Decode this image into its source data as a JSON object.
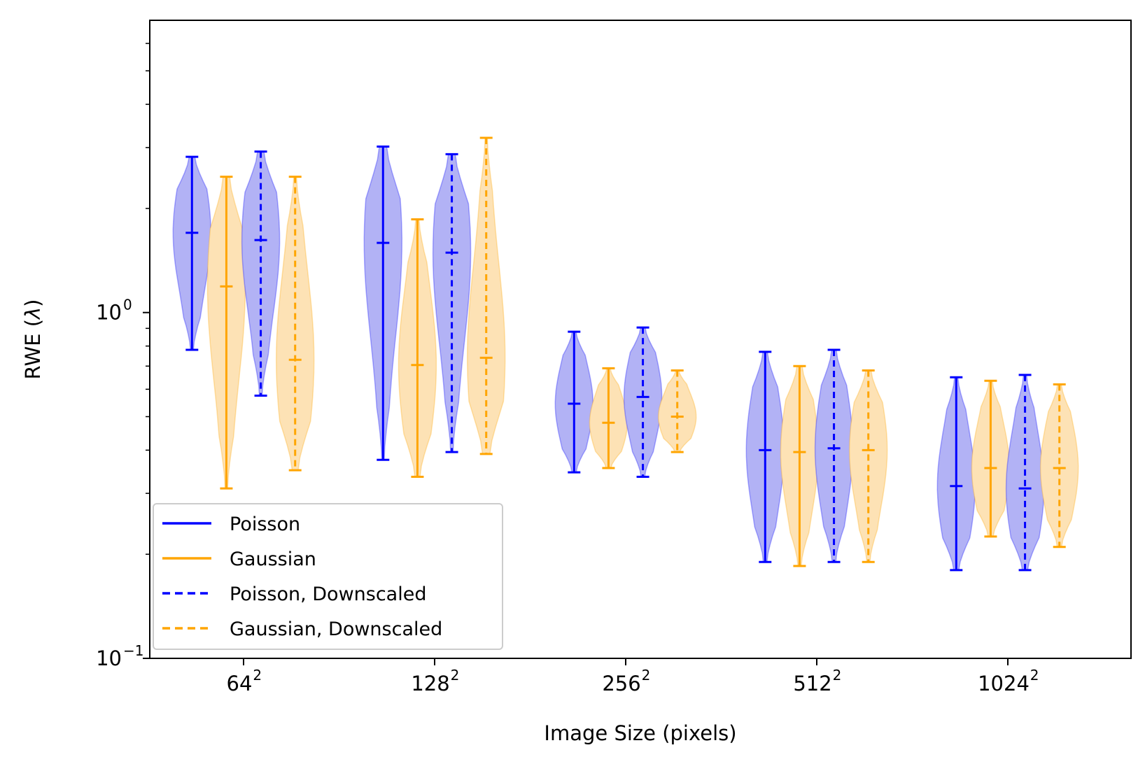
{
  "chart_data": {
    "type": "violin",
    "xlabel": "Image Size (pixels)",
    "ylabel": "RWE (",
    "ylabel_symbol": "λ",
    "ylabel_close": ")",
    "yscale": "log",
    "ylim": [
      0.1,
      7.0
    ],
    "y_ticks": [
      {
        "value": 1.0,
        "base": "10",
        "exp": "0"
      },
      {
        "value": 0.1,
        "base": "10",
        "exp": "−1"
      }
    ],
    "categories": [
      {
        "base": "64",
        "exp": "2"
      },
      {
        "base": "128",
        "exp": "2"
      },
      {
        "base": "256",
        "exp": "2"
      },
      {
        "base": "512",
        "exp": "2"
      },
      {
        "base": "1024",
        "exp": "2"
      }
    ],
    "colors": {
      "blue": "#0000ff",
      "orange": "#ffa500",
      "blue_fill": "#b2b2f5",
      "orange_fill": "#fde2b5"
    },
    "series": [
      {
        "name": "Poisson",
        "color": "#0000ff",
        "dashed": false,
        "offset": -0.27,
        "stats": [
          {
            "min": 0.78,
            "median": 1.7,
            "max": 2.82
          },
          {
            "min": 0.375,
            "median": 1.59,
            "max": 3.02
          },
          {
            "min": 0.345,
            "median": 0.545,
            "max": 0.88
          },
          {
            "min": 0.19,
            "median": 0.4,
            "max": 0.77
          },
          {
            "min": 0.18,
            "median": 0.315,
            "max": 0.65
          }
        ]
      },
      {
        "name": "Gaussian",
        "color": "#ffa500",
        "dashed": false,
        "offset": -0.09,
        "stats": [
          {
            "min": 0.31,
            "median": 1.19,
            "max": 2.47
          },
          {
            "min": 0.335,
            "median": 0.705,
            "max": 1.86
          },
          {
            "min": 0.355,
            "median": 0.48,
            "max": 0.69
          },
          {
            "min": 0.185,
            "median": 0.395,
            "max": 0.7
          },
          {
            "min": 0.225,
            "median": 0.355,
            "max": 0.635
          }
        ]
      },
      {
        "name": "Poisson, Downscaled",
        "color": "#0000ff",
        "dashed": true,
        "offset": 0.09,
        "stats": [
          {
            "min": 0.575,
            "median": 1.62,
            "max": 2.92
          },
          {
            "min": 0.395,
            "median": 1.49,
            "max": 2.87
          },
          {
            "min": 0.335,
            "median": 0.57,
            "max": 0.905
          },
          {
            "min": 0.19,
            "median": 0.405,
            "max": 0.78
          },
          {
            "min": 0.18,
            "median": 0.31,
            "max": 0.66
          }
        ]
      },
      {
        "name": "Gaussian, Downscaled",
        "color": "#ffa500",
        "dashed": true,
        "offset": 0.27,
        "stats": [
          {
            "min": 0.35,
            "median": 0.73,
            "max": 2.47
          },
          {
            "min": 0.39,
            "median": 0.74,
            "max": 3.2
          },
          {
            "min": 0.395,
            "median": 0.5,
            "max": 0.68
          },
          {
            "min": 0.19,
            "median": 0.4,
            "max": 0.68
          },
          {
            "min": 0.21,
            "median": 0.355,
            "max": 0.62
          }
        ]
      }
    ],
    "legend": {
      "position": "lower-left",
      "entries": [
        "Poisson",
        "Gaussian",
        "Poisson, Downscaled",
        "Gaussian, Downscaled"
      ]
    }
  }
}
